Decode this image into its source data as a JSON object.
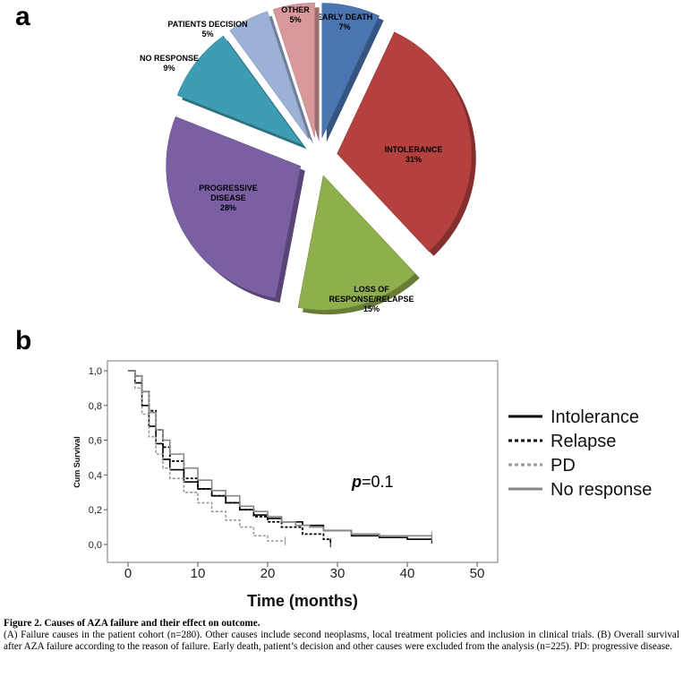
{
  "panels": {
    "a": "a",
    "b": "b"
  },
  "chart_data": [
    {
      "type": "pie",
      "slices": [
        {
          "label": "EARLY DEATH",
          "pct_label": "7%",
          "value": 7,
          "color": "#4a75b0"
        },
        {
          "label": "INTOLERANCE",
          "pct_label": "31%",
          "value": 31,
          "color": "#b5413f"
        },
        {
          "label": "LOSS OF RESPONSE/RELAPSE",
          "label_lines": [
            "LOSS OF",
            "RESPONSE/RELAPSE"
          ],
          "pct_label": "15%",
          "value": 15,
          "color": "#8fae4c"
        },
        {
          "label": "PROGRESSIVE DISEASE",
          "label_lines": [
            "PROGRESSIVE",
            "DISEASE"
          ],
          "pct_label": "28%",
          "value": 28,
          "color": "#7b5fa3"
        },
        {
          "label": "NO RESPONSE",
          "pct_label": "9%",
          "value": 9,
          "color": "#3f9db3"
        },
        {
          "label": "PATIENTS DECISION",
          "pct_label": "5%",
          "value": 5,
          "color": "#9db0d6"
        },
        {
          "label": "OTHER",
          "pct_label": "5%",
          "value": 5,
          "color": "#d9999a"
        }
      ]
    },
    {
      "type": "line",
      "subtype": "kaplan-meier",
      "xlabel": "Time (months)",
      "ylabel": "Cum Survival",
      "xlim": [
        0,
        50
      ],
      "ylim": [
        0,
        1
      ],
      "xticks": [
        "0",
        "10",
        "20",
        "30",
        "40",
        "50"
      ],
      "yticks": [
        "0,0",
        "0,2",
        "0,4",
        "0,6",
        "0,8",
        "1,0"
      ],
      "annotation": {
        "p_label": "p",
        "p_value": "=0.1"
      },
      "series": [
        {
          "name": "Intolerance",
          "color": "#000000",
          "style": "solid",
          "x": [
            0,
            1,
            2,
            3,
            4,
            5,
            6,
            8,
            10,
            12,
            14,
            16,
            18,
            20,
            22,
            25,
            28,
            32,
            36,
            40,
            43.5
          ],
          "y": [
            1.0,
            0.93,
            0.8,
            0.68,
            0.58,
            0.49,
            0.43,
            0.36,
            0.32,
            0.28,
            0.24,
            0.2,
            0.17,
            0.15,
            0.13,
            0.11,
            0.08,
            0.05,
            0.04,
            0.03,
            0.03
          ]
        },
        {
          "name": "Relapse",
          "color": "#000000",
          "style": "dotted",
          "x": [
            0,
            1,
            2,
            3,
            4,
            5,
            6,
            8,
            10,
            12,
            14,
            16,
            18,
            20,
            22,
            25,
            28,
            29
          ],
          "y": [
            1.0,
            0.97,
            0.88,
            0.77,
            0.66,
            0.56,
            0.48,
            0.38,
            0.32,
            0.28,
            0.24,
            0.2,
            0.16,
            0.13,
            0.1,
            0.06,
            0.03,
            0.01
          ]
        },
        {
          "name": "PD",
          "color": "#999999",
          "style": "dotted",
          "x": [
            0,
            1,
            2,
            3,
            4,
            5,
            6,
            8,
            10,
            12,
            14,
            16,
            18,
            20,
            22.5
          ],
          "y": [
            1.0,
            0.9,
            0.75,
            0.62,
            0.52,
            0.44,
            0.38,
            0.3,
            0.24,
            0.19,
            0.14,
            0.1,
            0.05,
            0.02,
            0.02
          ]
        },
        {
          "name": "No response",
          "color": "#888888",
          "style": "solid",
          "x": [
            0,
            1,
            2,
            3,
            4,
            5,
            6,
            8,
            10,
            12,
            14,
            16,
            18,
            20,
            22,
            24,
            26,
            28,
            32,
            36,
            40,
            43.5
          ],
          "y": [
            1.0,
            0.97,
            0.88,
            0.76,
            0.66,
            0.6,
            0.52,
            0.44,
            0.37,
            0.31,
            0.28,
            0.22,
            0.19,
            0.16,
            0.13,
            0.11,
            0.1,
            0.08,
            0.06,
            0.05,
            0.05,
            0.05
          ]
        }
      ]
    }
  ],
  "caption": {
    "title": "Figure 2.  Causes of AZA failure and their effect on outcome.",
    "body": "(A) Failure causes in the patient cohort (n=280). Other causes include second neoplasms, local treatment policies and inclusion in clinical trials. (B) Overall survival after AZA failure according to the reason of failure. Early death, patient’s decision and other causes were excluded from the analysis (n=225). PD: progressive disease."
  }
}
